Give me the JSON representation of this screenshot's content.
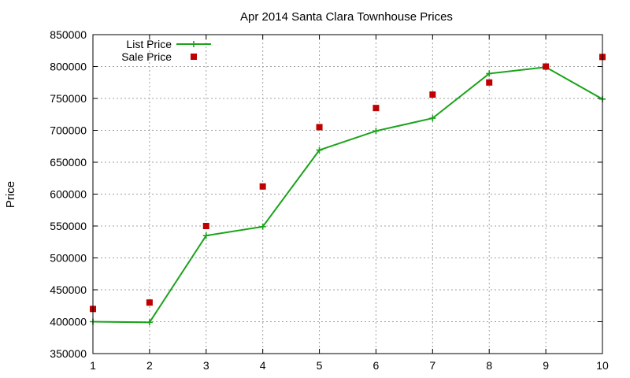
{
  "chart_data": {
    "type": "line",
    "title": "Apr 2014 Santa Clara Townhouse Prices",
    "xlabel": "",
    "ylabel": "Price",
    "xlim": [
      1,
      10
    ],
    "ylim": [
      350000,
      850000
    ],
    "xticks": [
      1,
      2,
      3,
      4,
      5,
      6,
      7,
      8,
      9,
      10
    ],
    "yticks": [
      350000,
      400000,
      450000,
      500000,
      550000,
      600000,
      650000,
      700000,
      750000,
      800000,
      850000
    ],
    "grid": true,
    "legend_position": "top-left",
    "series": [
      {
        "name": "List Price",
        "style": "line-points",
        "marker": "plus",
        "color": "#1aa31a",
        "x": [
          1,
          2,
          3,
          4,
          5,
          6,
          7,
          8,
          9,
          10
        ],
        "y": [
          399999,
          399000,
          535000,
          549000,
          669000,
          699000,
          719000,
          789000,
          799000,
          749000
        ]
      },
      {
        "name": "Sale Price",
        "style": "points",
        "marker": "square",
        "color": "#c00000",
        "x": [
          1,
          2,
          3,
          4,
          5,
          6,
          7,
          8,
          9,
          10
        ],
        "y": [
          420000,
          430000,
          550000,
          612000,
          705000,
          735000,
          756000,
          775000,
          800000,
          815000
        ]
      }
    ]
  }
}
